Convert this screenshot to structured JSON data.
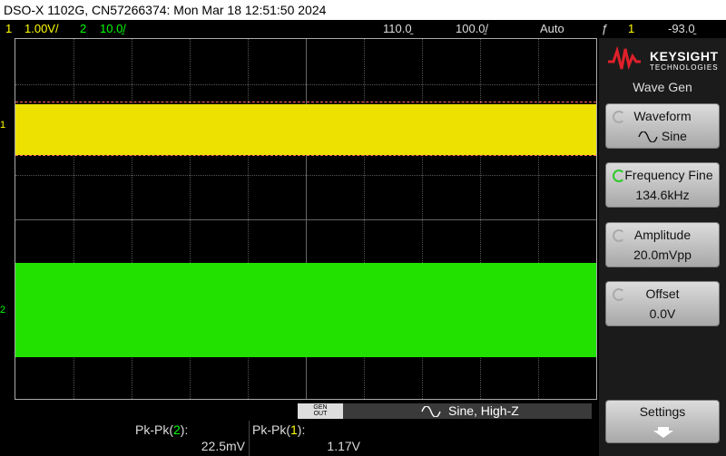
{
  "title_bar": "DSO-X 1102G, CN57266374: Mon Mar 18 12:51:50 2024",
  "status": {
    "ch1_num": "1",
    "ch1_scale": "1.00V/",
    "ch2_num": "2",
    "ch2_scale": "10.0̱/",
    "delay": "110.0̱",
    "timebase": "100.0̱/",
    "trigger_mode": "Auto",
    "trigger_icon": "ƒ",
    "trigger_source": "1",
    "trigger_level": "-93.0̱"
  },
  "waveform": {
    "ch1_marker": "1",
    "ch2_marker": "2"
  },
  "colors": {
    "ch1": "#ece100",
    "ch2": "#22e000",
    "accent": "#2ec82e",
    "trigger": "#ff9a00"
  },
  "sidepanel": {
    "brand": "KEYSIGHT",
    "brand_sub": "TECHNOLOGIES",
    "menu_title": "Wave Gen",
    "softkeys": [
      {
        "label": "Waveform",
        "value": "Sine",
        "value_icon": "sine-wave-icon"
      },
      {
        "label": "Frequency Fine",
        "value": "134.6kHz"
      },
      {
        "label": "Amplitude",
        "value": "20.0mVpp"
      },
      {
        "label": "Offset",
        "value": "0.0V"
      }
    ],
    "settings": "Settings"
  },
  "bottom": {
    "gen_out_line1": "GEN",
    "gen_out_line2": "OUT",
    "wavegen_summary": "Sine, High-Z",
    "measurements": [
      {
        "label_prefix": "Pk-Pk(",
        "channel": "2",
        "label_suffix": "):",
        "value": "22.5mV"
      },
      {
        "label_prefix": "Pk-Pk(",
        "channel": "1",
        "label_suffix": "):",
        "value": "1.17V"
      }
    ]
  }
}
